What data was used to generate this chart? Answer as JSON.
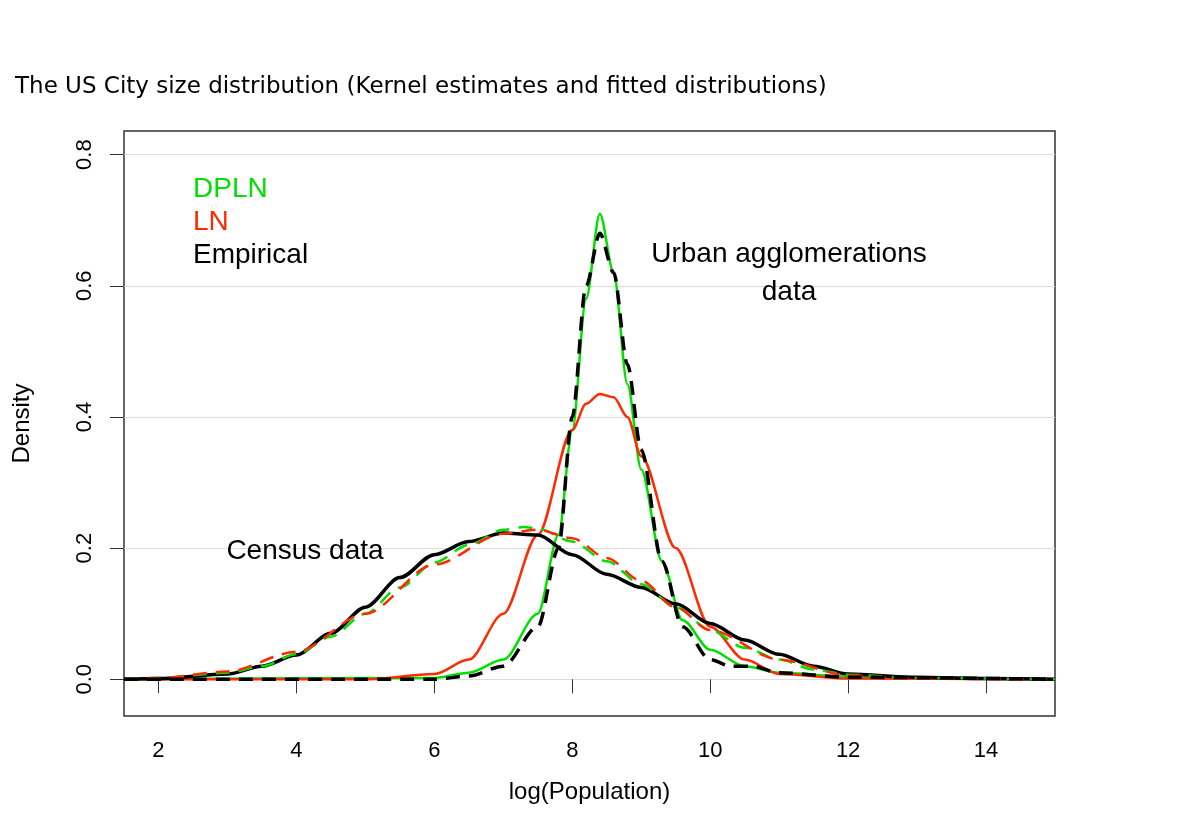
{
  "chart_data": {
    "type": "line",
    "title": "The US City size distribution (Kernel estimates and fitted distributions)",
    "xlabel": "log(Population)",
    "ylabel": "Density",
    "xlim": [
      1.5,
      15
    ],
    "xticks": [
      2,
      4,
      6,
      8,
      10,
      12,
      14
    ],
    "ylim": [
      -0.056,
      0.836
    ],
    "yticks": [
      {
        "value": 0,
        "label": "0.0"
      },
      0.2,
      0.4,
      0.6,
      0.8
    ],
    "grid": "y",
    "legend": "top left",
    "marker": "none",
    "annotations": [
      "Census data",
      "Urban agglomerations\ndata"
    ],
    "series": [
      {
        "name": "DPLN",
        "color": "#00e000",
        "line_style": "solid",
        "x": [
          1.5,
          6,
          6.5,
          7,
          7.5,
          7.8,
          8,
          8.2,
          8.4,
          8.6,
          8.8,
          9,
          9.3,
          9.6,
          10,
          10.5,
          11,
          12,
          15
        ],
        "values": [
          0.0,
          0.002,
          0.01,
          0.03,
          0.1,
          0.22,
          0.38,
          0.58,
          0.71,
          0.62,
          0.45,
          0.32,
          0.18,
          0.09,
          0.045,
          0.02,
          0.01,
          0.004,
          0.0
        ]
      },
      {
        "name": "LN",
        "color": "#ff2a00",
        "line_style": "solid",
        "x": [
          1.5,
          5,
          6,
          6.5,
          7,
          7.5,
          8,
          8.2,
          8.4,
          8.6,
          8.8,
          9,
          9.5,
          10,
          10.5,
          11,
          12,
          15
        ],
        "values": [
          0.0,
          0.0,
          0.008,
          0.03,
          0.1,
          0.22,
          0.38,
          0.42,
          0.435,
          0.43,
          0.4,
          0.34,
          0.2,
          0.08,
          0.03,
          0.008,
          0.001,
          0.0
        ]
      },
      {
        "name": "Empirical",
        "color": "#000000",
        "line_style": "solid",
        "x": [
          1.5,
          2,
          3,
          3.5,
          4,
          4.5,
          5,
          5.5,
          6,
          6.5,
          7,
          7.5,
          8,
          8.5,
          9,
          9.5,
          10,
          10.5,
          11,
          11.5,
          12,
          13,
          14,
          15
        ],
        "values": [
          0.0,
          0.001,
          0.008,
          0.02,
          0.037,
          0.07,
          0.11,
          0.155,
          0.19,
          0.21,
          0.223,
          0.22,
          0.19,
          0.16,
          0.14,
          0.115,
          0.085,
          0.06,
          0.038,
          0.02,
          0.008,
          0.003,
          0.001,
          0.0
        ]
      },
      {
        "color": "#00e000",
        "line_style": "dashed",
        "x": [
          1.5,
          2,
          3,
          3.5,
          4,
          4.5,
          5,
          5.5,
          6,
          6.5,
          7,
          7.3,
          7.5,
          8,
          8.5,
          9,
          9.5,
          10,
          10.5,
          11,
          11.5,
          12,
          13,
          15
        ],
        "values": [
          0.0,
          0.002,
          0.01,
          0.02,
          0.038,
          0.065,
          0.1,
          0.14,
          0.178,
          0.205,
          0.228,
          0.232,
          0.23,
          0.21,
          0.18,
          0.145,
          0.11,
          0.075,
          0.048,
          0.03,
          0.015,
          0.007,
          0.002,
          0.0
        ]
      },
      {
        "color": "#ff2a00",
        "line_style": "dashed",
        "x": [
          1.5,
          2,
          3,
          4,
          5,
          6,
          7,
          7.5,
          8,
          8.5,
          9,
          9.5,
          10,
          11,
          12,
          13,
          15
        ],
        "values": [
          0.0,
          0.002,
          0.012,
          0.042,
          0.1,
          0.175,
          0.222,
          0.228,
          0.215,
          0.185,
          0.15,
          0.11,
          0.075,
          0.03,
          0.006,
          0.001,
          0.0
        ]
      },
      {
        "color": "#000000",
        "line_style": "dashed",
        "x": [
          1.5,
          6,
          6.5,
          7,
          7.5,
          7.8,
          8,
          8.2,
          8.4,
          8.6,
          8.8,
          9,
          9.3,
          9.6,
          10,
          10.3,
          10.6,
          11,
          12,
          15
        ],
        "values": [
          0.0,
          0.0,
          0.005,
          0.02,
          0.08,
          0.2,
          0.4,
          0.6,
          0.68,
          0.62,
          0.48,
          0.35,
          0.18,
          0.08,
          0.03,
          0.02,
          0.02,
          0.01,
          0.003,
          0.0
        ]
      }
    ]
  }
}
